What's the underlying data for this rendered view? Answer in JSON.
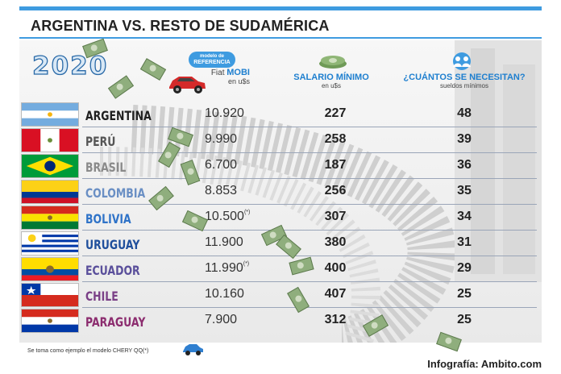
{
  "title": "ARGENTINA VS. RESTO DE SUDAMÉRICA",
  "year": "2020",
  "reference_badge": {
    "line1": "modelo de",
    "line2": "REFERENCIA"
  },
  "columns": {
    "mobi_line1_prefix": "Fiat ",
    "mobi_line1_brand": "MOBI",
    "mobi_line2": "en u$s",
    "salario_line1": "SALARIO MÍNIMO",
    "salario_line2": "en u$s",
    "cuantos_line1": "¿CUÁNTOS SE NECESITAN?",
    "cuantos_line2": "sueldos mínimos"
  },
  "rows": [
    {
      "country": "ARGENTINA",
      "color": "#1f1f1f",
      "price": "10.920",
      "mark": "",
      "salario": "227",
      "cuantos": "48"
    },
    {
      "country": "PERÚ",
      "color": "#555555",
      "price": "9.990",
      "mark": "",
      "salario": "258",
      "cuantos": "39"
    },
    {
      "country": "BRASIL",
      "color": "#8a8a8a",
      "price": "6.700",
      "mark": "",
      "salario": "187",
      "cuantos": "36"
    },
    {
      "country": "COLOMBIA",
      "color": "#6a8fc4",
      "price": "8.853",
      "mark": "",
      "salario": "256",
      "cuantos": "35"
    },
    {
      "country": "BOLIVIA",
      "color": "#2f73c8",
      "price": "10.500",
      "mark": "(*)",
      "salario": "307",
      "cuantos": "34"
    },
    {
      "country": "URUGUAY",
      "color": "#1f4f9c",
      "price": "11.900",
      "mark": "",
      "salario": "380",
      "cuantos": "31"
    },
    {
      "country": "ECUADOR",
      "color": "#5a4f9b",
      "price": "11.990",
      "mark": "(*)",
      "salario": "400",
      "cuantos": "29"
    },
    {
      "country": "CHILE",
      "color": "#7a3f86",
      "price": "10.160",
      "mark": "",
      "salario": "407",
      "cuantos": "25"
    },
    {
      "country": "PARAGUAY",
      "color": "#8c2d6f",
      "price": "7.900",
      "mark": "",
      "salario": "312",
      "cuantos": "25"
    }
  ],
  "footnote": "Se toma como ejemplo el modelo CHERY QQ(*)",
  "credit": "Infografía: Ambito.com",
  "colors": {
    "accent_blue": "#3e9be0",
    "heading_blue": "#1e7fcf"
  }
}
